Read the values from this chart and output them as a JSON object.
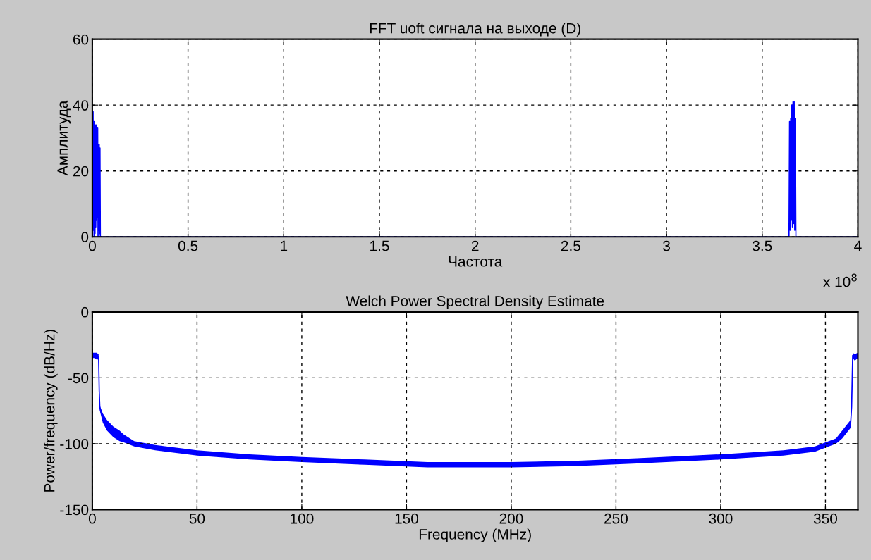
{
  "chart_data": [
    {
      "type": "line",
      "title": "FFT uoft сигнала на выходе (D)",
      "xlabel": "Частота",
      "ylabel": "Амплитуда",
      "annotations": [
        "x 10$^{8}$"
      ],
      "grid": true,
      "xlim": [
        0,
        4
      ],
      "ylim": [
        0,
        60
      ],
      "xticks": [
        0,
        0.5,
        1,
        1.5,
        2,
        2.5,
        3,
        3.5,
        4
      ],
      "yticks": [
        0,
        20,
        40,
        60
      ],
      "series": [
        {
          "color": "#0000ff",
          "x": [
            0,
            0.002,
            0.004,
            0.006,
            0.008,
            0.01,
            0.012,
            0.014,
            0.016,
            0.018,
            0.02,
            0.022,
            0.024,
            0.026,
            0.028,
            0.03,
            0.032,
            0.034,
            0.036,
            0.038,
            0.04,
            0.042,
            0.045,
            0.06,
            3.62,
            3.64,
            3.643,
            3.646,
            3.649,
            3.652,
            3.655,
            3.658,
            3.661,
            3.664,
            3.667,
            3.67,
            3.673,
            3.676,
            3.68,
            3.7,
            4
          ],
          "values": [
            37,
            0,
            38,
            2,
            35,
            0,
            35,
            1,
            34,
            3,
            34,
            5,
            33,
            6,
            33,
            0,
            28,
            2,
            28,
            1,
            27,
            0,
            0,
            0,
            0,
            0,
            35,
            2,
            36,
            5,
            40,
            3,
            41,
            4,
            41,
            2,
            36,
            0,
            0,
            0,
            0
          ]
        }
      ]
    },
    {
      "type": "line",
      "title": "Welch Power Spectral Density Estimate",
      "xlabel": "Frequency (MHz)",
      "ylabel": "Power/frequency (dB/Hz)",
      "grid": true,
      "xlim": [
        0,
        365.5
      ],
      "ylim": [
        -150,
        0
      ],
      "xticks": [
        0,
        50,
        100,
        150,
        200,
        250,
        300,
        350
      ],
      "yticks": [
        -150,
        -100,
        -50,
        0
      ],
      "series": [
        {
          "color": "#0000ff",
          "x": [
            0,
            1,
            2,
            3,
            3.3,
            3.6,
            5,
            7,
            10,
            13,
            15,
            20,
            30,
            40,
            50,
            75,
            100,
            130,
            160,
            200,
            230,
            260,
            300,
            330,
            345,
            350,
            355,
            358,
            360,
            362,
            362.5,
            363,
            364,
            365.5
          ],
          "values": [
            -33,
            -33,
            -33,
            -34,
            -60,
            -73,
            -80,
            -86,
            -91,
            -94,
            -97,
            -100,
            -103,
            -105,
            -107,
            -110,
            -112,
            -114,
            -116,
            -116,
            -115,
            -113,
            -110,
            -107,
            -104,
            -101,
            -98,
            -93,
            -89,
            -85,
            -72,
            -33,
            -34,
            -33
          ],
          "lower": [
            -35,
            -35,
            -36,
            -36,
            -62,
            -75,
            -84,
            -90,
            -95,
            -98,
            -99,
            -102,
            -105,
            -107,
            -109,
            -112,
            -114,
            -116,
            -118,
            -118,
            -117,
            -115,
            -112,
            -109,
            -106,
            -103,
            -100,
            -96,
            -92,
            -88,
            -74,
            -35,
            -37,
            -35
          ],
          "upper": [
            -31,
            -31,
            -31,
            -32,
            -58,
            -71,
            -77,
            -82,
            -87,
            -90,
            -93,
            -98,
            -101,
            -103,
            -105,
            -108,
            -110,
            -112,
            -114,
            -114,
            -113,
            -111,
            -108,
            -105,
            -102,
            -99,
            -96,
            -90,
            -86,
            -82,
            -70,
            -31,
            -32,
            -31
          ]
        }
      ]
    }
  ]
}
